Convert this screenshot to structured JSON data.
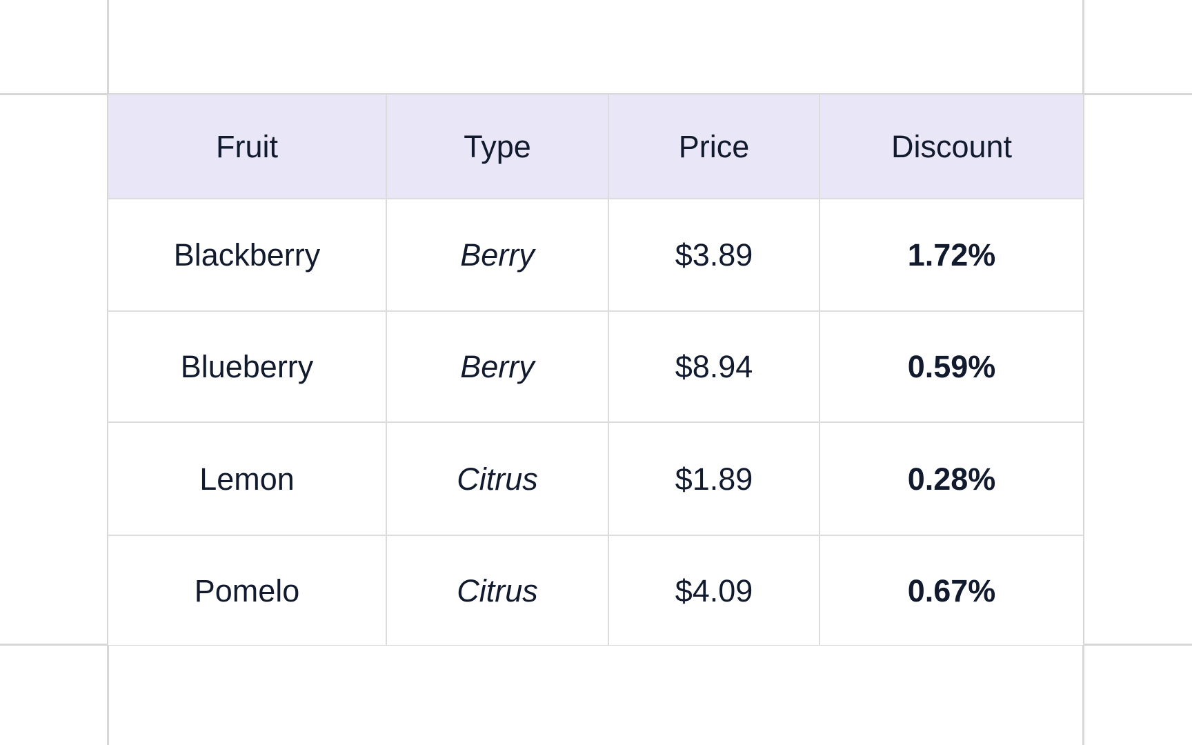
{
  "theme": {
    "header_bg": "#e9e6f8",
    "text_color": "#121a2e",
    "grid_line": "#d7d7d7",
    "grid_line_inner": "#dcdcdc",
    "page_bg": "#ffffff"
  },
  "table": {
    "columns": [
      "Fruit",
      "Type",
      "Price",
      "Discount"
    ],
    "rows": [
      {
        "fruit": "Blackberry",
        "type": "Berry",
        "price": "$3.89",
        "discount": "1.72%"
      },
      {
        "fruit": "Blueberry",
        "type": "Berry",
        "price": "$8.94",
        "discount": "0.59%"
      },
      {
        "fruit": "Lemon",
        "type": "Citrus",
        "price": "$1.89",
        "discount": "0.28%"
      },
      {
        "fruit": "Pomelo",
        "type": "Citrus",
        "price": "$4.09",
        "discount": "0.67%"
      }
    ]
  }
}
